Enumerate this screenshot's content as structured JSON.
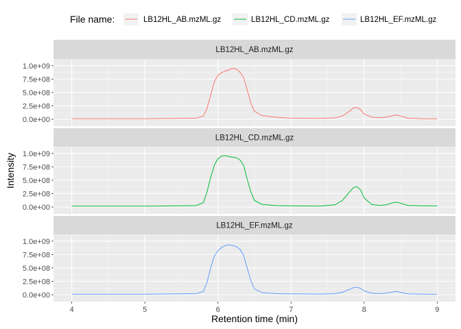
{
  "chart_data": {
    "type": "line",
    "facet_by": "file name",
    "legend": {
      "title": "File name:",
      "position": "top",
      "entries": [
        "LB12HL_AB.mzML.gz",
        "LB12HL_CD.mzML.gz",
        "LB12HL_EF.mzML.gz"
      ]
    },
    "xlabel": "Retention time (min)",
    "ylabel": "Intensity",
    "xlim": [
      3.75,
      9.25
    ],
    "ylim": [
      0,
      1100000000.0
    ],
    "x_ticks": [
      4,
      5,
      6,
      7,
      8,
      9
    ],
    "x_tick_labels": [
      "4",
      "5",
      "6",
      "7",
      "8",
      "9"
    ],
    "y_ticks": [
      0,
      250000000,
      500000000,
      750000000,
      1000000000
    ],
    "y_tick_labels": [
      "0.0e+00",
      "2.5e+08",
      "5.0e+08",
      "7.5e+08",
      "1.0e+09"
    ],
    "grid": true,
    "series": [
      {
        "name": "LB12HL_AB.mzML.gz",
        "color": "#F8766D",
        "x": [
          4.0,
          5.0,
          5.7,
          5.8,
          5.85,
          5.9,
          5.95,
          6.0,
          6.05,
          6.1,
          6.15,
          6.2,
          6.25,
          6.3,
          6.35,
          6.4,
          6.45,
          6.5,
          6.6,
          6.8,
          7.0,
          7.4,
          7.6,
          7.7,
          7.8,
          7.85,
          7.9,
          7.95,
          8.0,
          8.1,
          8.2,
          8.3,
          8.4,
          8.45,
          8.5,
          8.6,
          8.8,
          9.0
        ],
        "y": [
          10000000,
          10000000,
          20000000,
          60000000,
          200000000,
          450000000,
          700000000,
          820000000,
          870000000,
          900000000,
          920000000,
          950000000,
          940000000,
          880000000,
          780000000,
          550000000,
          300000000,
          150000000,
          70000000,
          35000000,
          20000000,
          15000000,
          25000000,
          60000000,
          150000000,
          210000000,
          220000000,
          180000000,
          100000000,
          40000000,
          30000000,
          40000000,
          70000000,
          80000000,
          60000000,
          20000000,
          10000000,
          8000000
        ]
      },
      {
        "name": "LB12HL_CD.mzML.gz",
        "color": "#00BA38",
        "x": [
          4.0,
          5.0,
          5.7,
          5.8,
          5.85,
          5.9,
          5.95,
          6.0,
          6.05,
          6.1,
          6.15,
          6.2,
          6.25,
          6.3,
          6.35,
          6.4,
          6.45,
          6.5,
          6.6,
          6.8,
          7.0,
          7.4,
          7.6,
          7.7,
          7.8,
          7.85,
          7.9,
          7.95,
          8.0,
          8.1,
          8.2,
          8.3,
          8.4,
          8.45,
          8.5,
          8.6,
          8.8,
          9.0
        ],
        "y": [
          15000000,
          15000000,
          25000000,
          80000000,
          280000000,
          550000000,
          780000000,
          900000000,
          950000000,
          960000000,
          940000000,
          930000000,
          920000000,
          880000000,
          780000000,
          520000000,
          280000000,
          120000000,
          50000000,
          25000000,
          20000000,
          18000000,
          40000000,
          120000000,
          280000000,
          360000000,
          380000000,
          320000000,
          170000000,
          50000000,
          30000000,
          40000000,
          80000000,
          90000000,
          70000000,
          30000000,
          20000000,
          20000000
        ]
      },
      {
        "name": "LB12HL_EF.mzML.gz",
        "color": "#619CFF",
        "x": [
          4.0,
          5.0,
          5.7,
          5.8,
          5.85,
          5.9,
          5.95,
          6.0,
          6.05,
          6.1,
          6.15,
          6.2,
          6.25,
          6.3,
          6.35,
          6.4,
          6.45,
          6.5,
          6.6,
          6.8,
          7.0,
          7.4,
          7.6,
          7.7,
          7.8,
          7.85,
          7.9,
          7.95,
          8.0,
          8.1,
          8.2,
          8.3,
          8.4,
          8.45,
          8.5,
          8.6,
          8.8,
          9.0
        ],
        "y": [
          10000000,
          10000000,
          20000000,
          60000000,
          230000000,
          500000000,
          720000000,
          820000000,
          880000000,
          920000000,
          930000000,
          920000000,
          900000000,
          850000000,
          740000000,
          500000000,
          260000000,
          110000000,
          40000000,
          20000000,
          15000000,
          12000000,
          20000000,
          45000000,
          100000000,
          130000000,
          140000000,
          120000000,
          70000000,
          30000000,
          20000000,
          30000000,
          55000000,
          60000000,
          45000000,
          15000000,
          10000000,
          10000000
        ]
      }
    ]
  }
}
